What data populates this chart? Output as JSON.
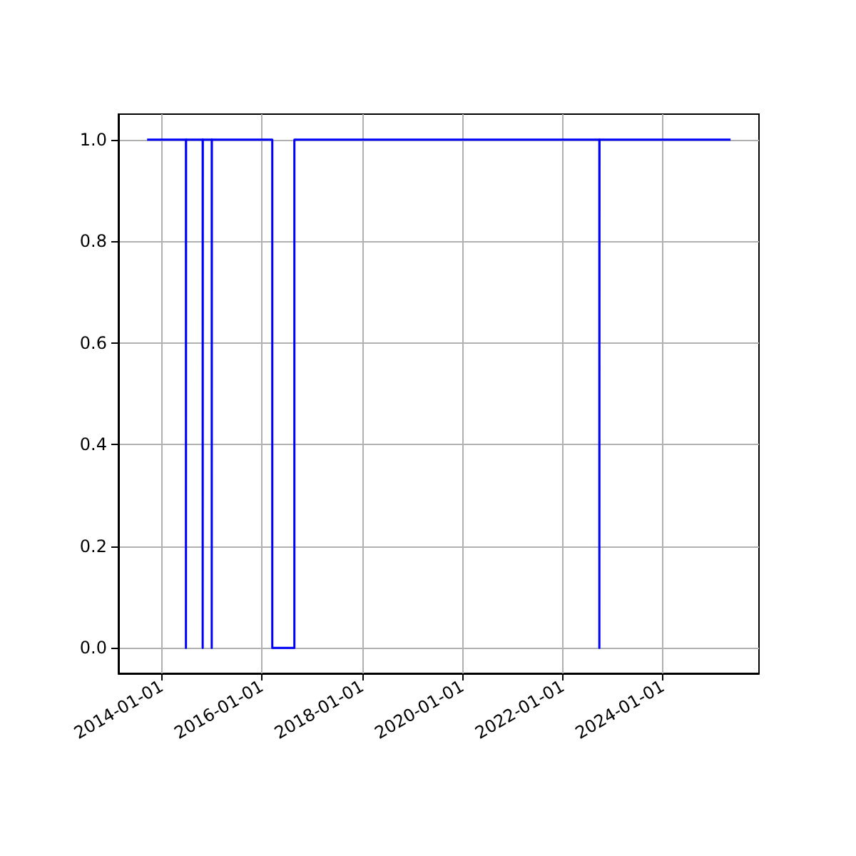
{
  "chart_data": {
    "type": "step",
    "x": [
      "2013-09-17",
      "2014-06-27",
      "2014-06-28",
      "2014-10-27",
      "2014-10-28",
      "2015-01-01",
      "2015-01-02",
      "2016-03-17",
      "2016-08-25",
      "2022-09-25",
      "2022-09-26",
      "2025-05-08"
    ],
    "series": [
      {
        "color": "#0000ff",
        "values": [
          1,
          0,
          1,
          0,
          1,
          0,
          1,
          0,
          1,
          0,
          1,
          1
        ]
      }
    ],
    "xlim": [
      "2013-02-20",
      "2025-12-01"
    ],
    "xticks": [
      "2014-01-01",
      "2016-01-01",
      "2018-01-01",
      "2020-01-01",
      "2022-01-01",
      "2024-01-01"
    ],
    "ylim": [
      -0.05,
      1.05
    ],
    "yticks": [
      {
        "value": 0,
        "label": "0.0"
      },
      {
        "value": 0.2,
        "label": "0.2"
      },
      {
        "value": 0.4,
        "label": "0.4"
      },
      {
        "value": 0.6,
        "label": "0.6"
      },
      {
        "value": 0.8,
        "label": "0.8"
      },
      {
        "value": 1,
        "label": "1.0"
      }
    ],
    "grid": true
  }
}
